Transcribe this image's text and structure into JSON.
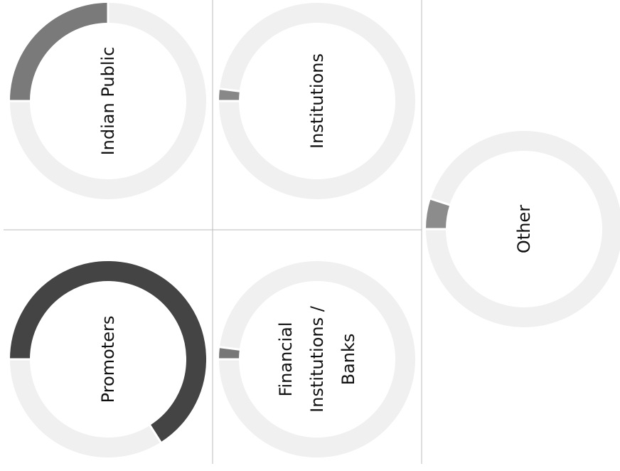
{
  "chart_data": [
    {
      "type": "donut",
      "title": "Indian Public",
      "values": [
        25
      ],
      "color": "#7a7a7a"
    },
    {
      "type": "donut",
      "title": "Institutions",
      "values": [
        2
      ],
      "color": "#888888"
    },
    {
      "type": "donut",
      "title": "Other",
      "values": [
        5
      ],
      "color": "#8c8c8c"
    },
    {
      "type": "donut",
      "title": "Promoters",
      "values": [
        66
      ],
      "color": "#444444"
    },
    {
      "type": "donut",
      "title": "Financial Institutions / Banks",
      "values": [
        2
      ],
      "color": "#777777"
    }
  ]
}
